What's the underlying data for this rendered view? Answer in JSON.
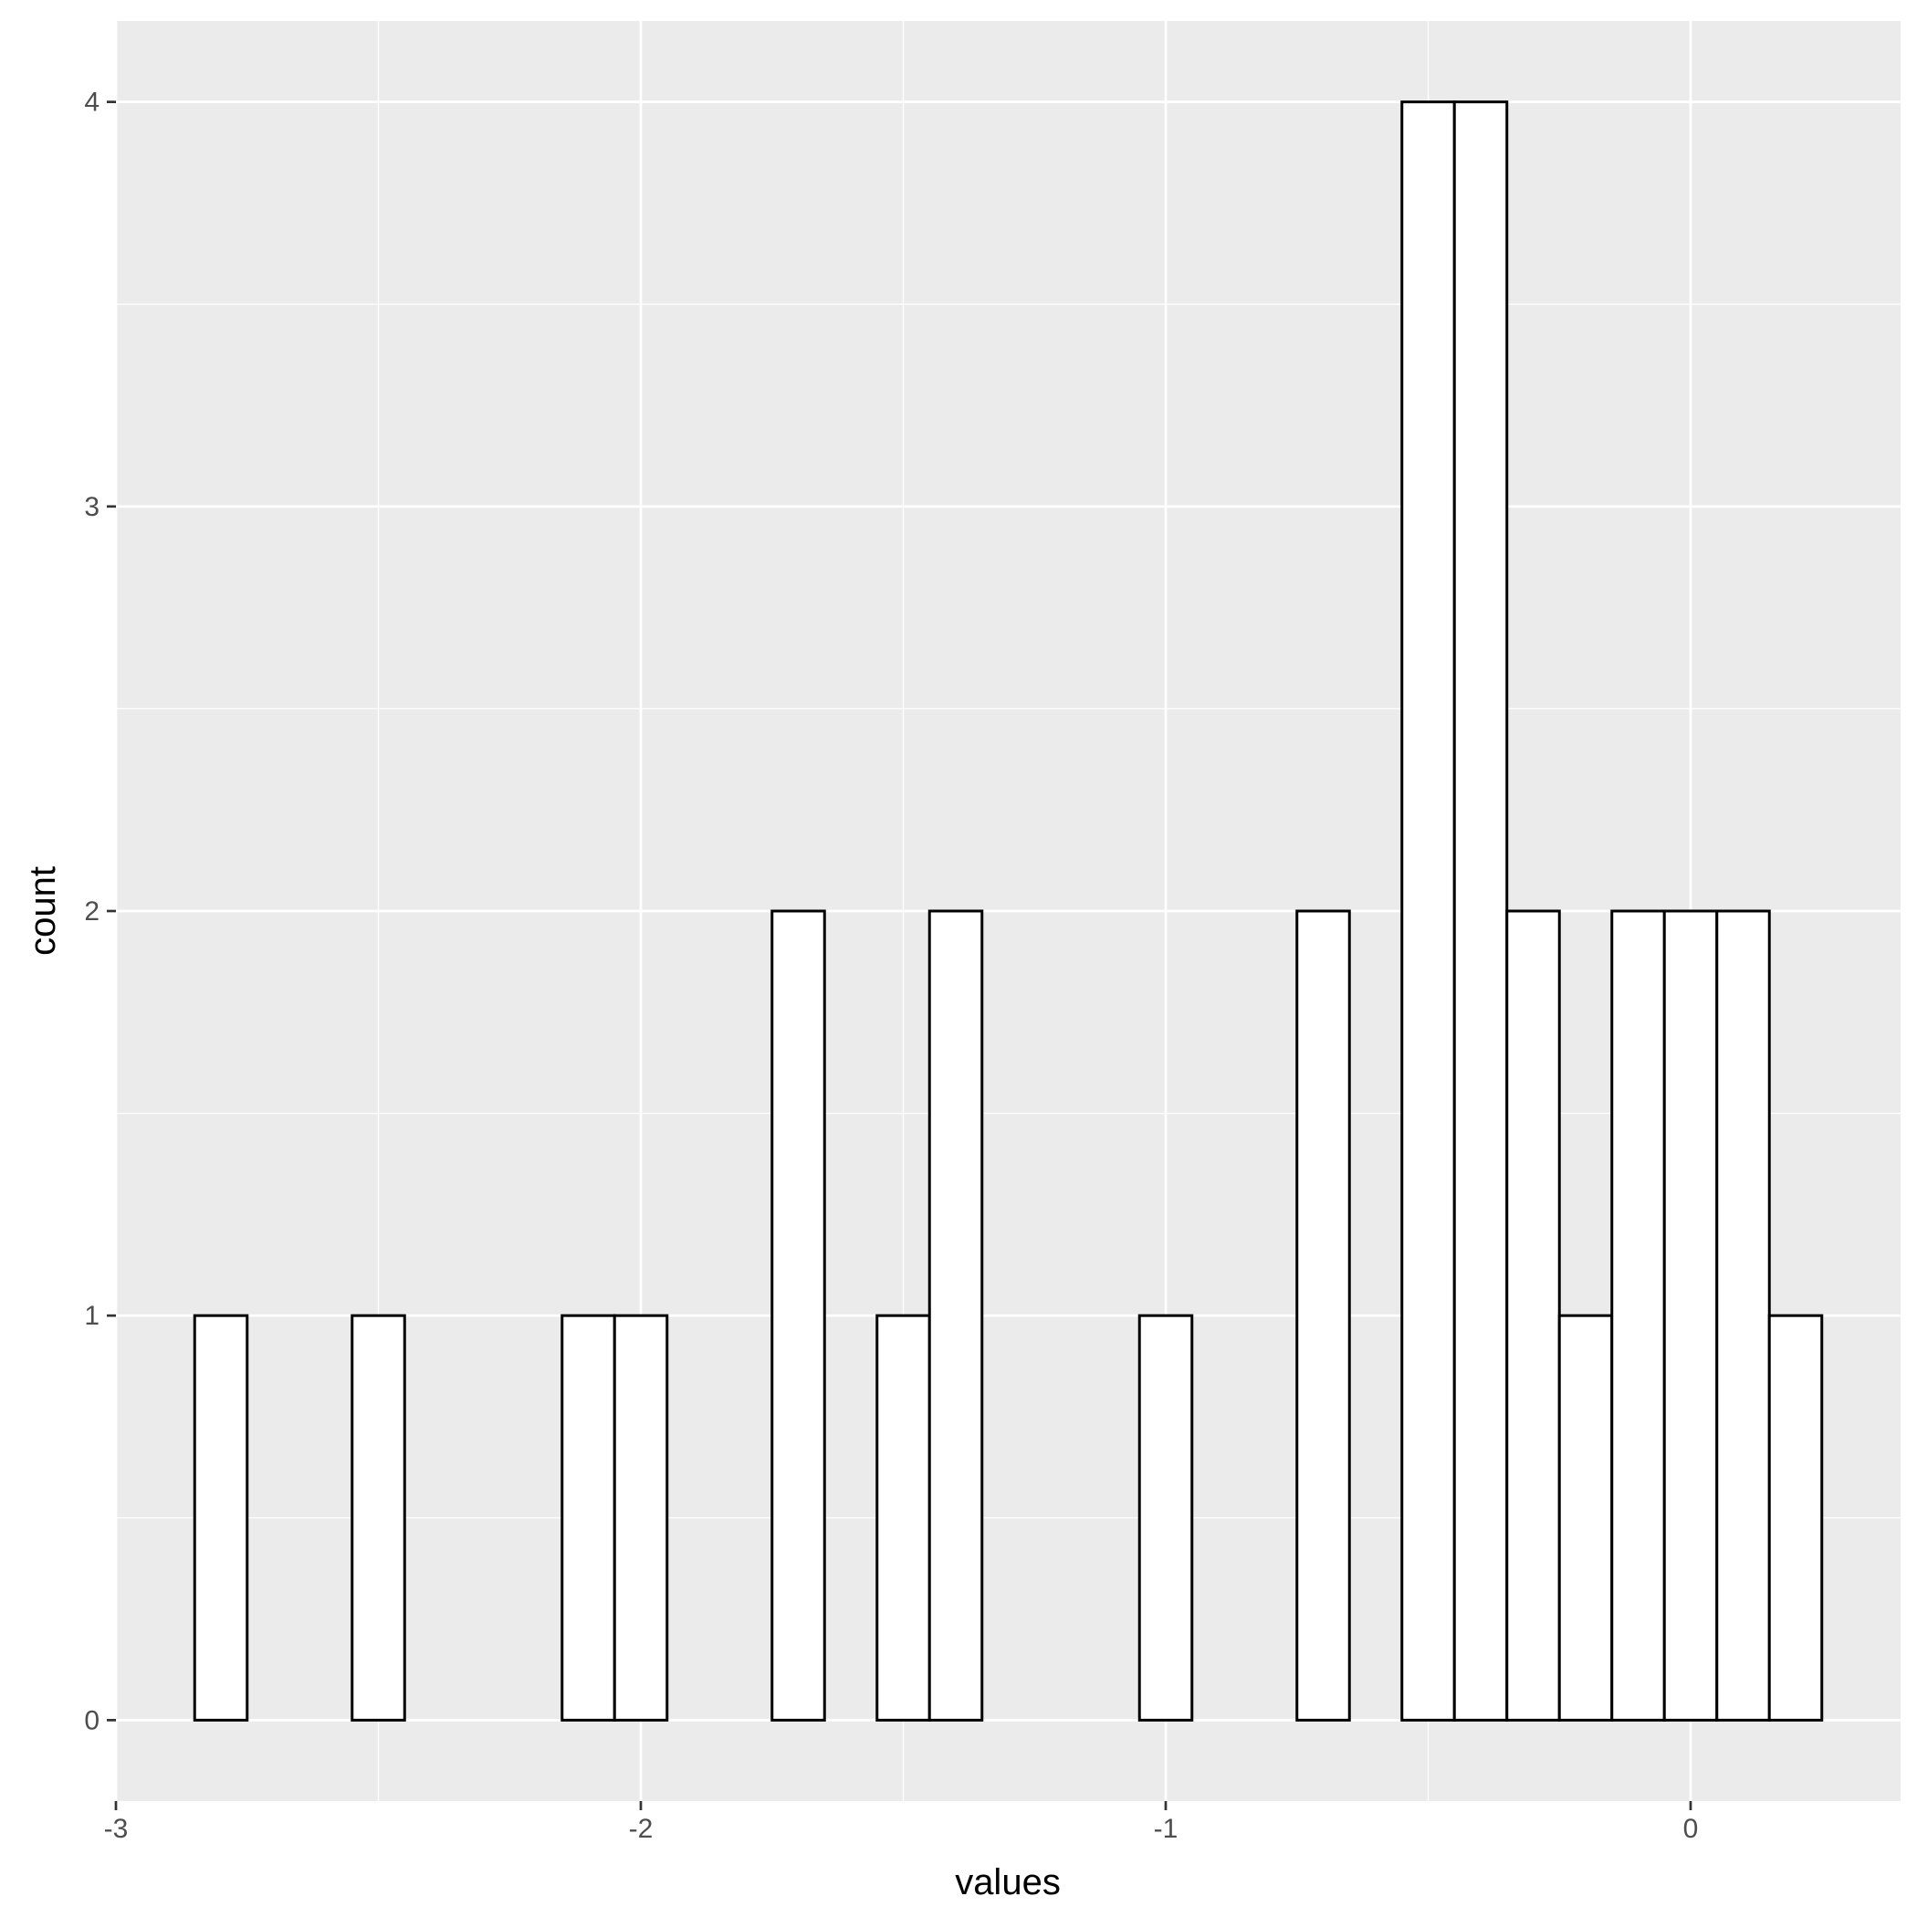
{
  "chart_data": {
    "type": "bar",
    "subtype": "histogram",
    "xlabel": "values",
    "ylabel": "count",
    "xlim": [
      -3,
      0.4
    ],
    "ylim": [
      -0.2,
      4.2
    ],
    "x_ticks": [
      -3,
      -2,
      -1,
      0
    ],
    "y_ticks": [
      0,
      1,
      2,
      3,
      4
    ],
    "grid": true,
    "bin_width": 0.1,
    "bins": [
      {
        "x": -2.8,
        "count": 1
      },
      {
        "x": -2.7,
        "count": 0
      },
      {
        "x": -2.6,
        "count": 0
      },
      {
        "x": -2.5,
        "count": 1
      },
      {
        "x": -2.4,
        "count": 0
      },
      {
        "x": -2.3,
        "count": 0
      },
      {
        "x": -2.2,
        "count": 0
      },
      {
        "x": -2.1,
        "count": 1
      },
      {
        "x": -2.0,
        "count": 1
      },
      {
        "x": -1.9,
        "count": 0
      },
      {
        "x": -1.8,
        "count": 0
      },
      {
        "x": -1.7,
        "count": 2
      },
      {
        "x": -1.6,
        "count": 0
      },
      {
        "x": -1.5,
        "count": 1
      },
      {
        "x": -1.4,
        "count": 2
      },
      {
        "x": -1.3,
        "count": 0
      },
      {
        "x": -1.2,
        "count": 0
      },
      {
        "x": -1.1,
        "count": 0
      },
      {
        "x": -1.0,
        "count": 1
      },
      {
        "x": -0.9,
        "count": 0
      },
      {
        "x": -0.8,
        "count": 0
      },
      {
        "x": -0.7,
        "count": 2
      },
      {
        "x": -0.6,
        "count": 0
      },
      {
        "x": -0.5,
        "count": 4
      },
      {
        "x": -0.4,
        "count": 4
      },
      {
        "x": -0.3,
        "count": 2
      },
      {
        "x": -0.2,
        "count": 1
      },
      {
        "x": -0.1,
        "count": 2
      },
      {
        "x": 0.0,
        "count": 2
      },
      {
        "x": 0.1,
        "count": 2
      },
      {
        "x": 0.2,
        "count": 1
      }
    ],
    "colors": {
      "panel_background": "#ebebeb",
      "grid_major": "#ffffff",
      "bar_fill": "#ffffff",
      "bar_outline": "#000000",
      "tick_text": "#4d4d4d",
      "axis_title_text": "#000000"
    }
  }
}
